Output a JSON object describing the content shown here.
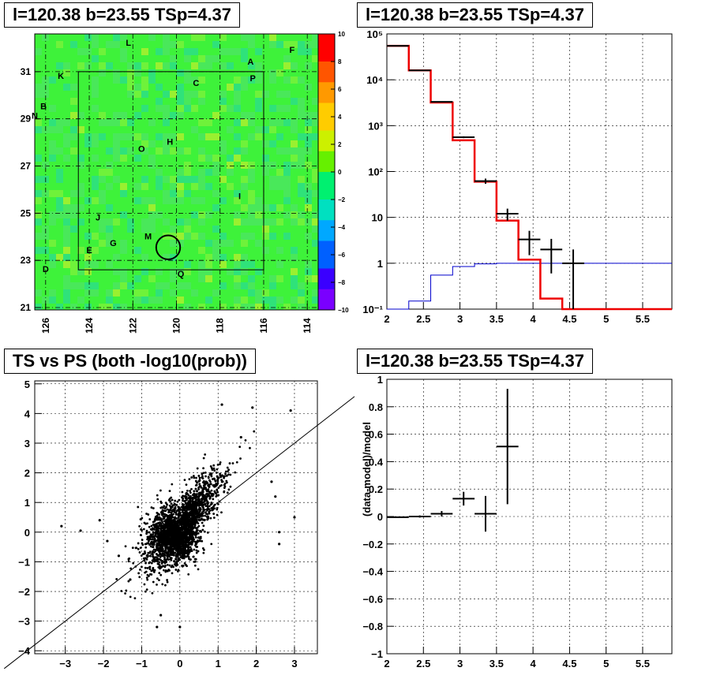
{
  "chart_data": [
    {
      "type": "heatmap",
      "title": "l=120.38 b=23.55 TSp=4.37",
      "x_ticks": [
        "126",
        "124",
        "122",
        "120",
        "118",
        "116",
        "114"
      ],
      "y_ticks": [
        "21",
        "23",
        "25",
        "27",
        "29",
        "31"
      ],
      "xlim": [
        126.5,
        113.5
      ],
      "ylim": [
        20.9,
        32.6
      ],
      "colorbar": {
        "ticks": [
          "10",
          "8",
          "6",
          "4",
          "2",
          "0",
          "−2",
          "−4",
          "−6",
          "−8",
          "−10"
        ],
        "range": [
          -10,
          10
        ]
      },
      "circle": {
        "l": 120.38,
        "b": 23.55,
        "r": 0.55
      },
      "labels": [
        {
          "t": "L",
          "l": 122.2,
          "b": 32.1
        },
        {
          "t": "F",
          "l": 114.7,
          "b": 31.8
        },
        {
          "t": "A",
          "l": 116.6,
          "b": 31.3
        },
        {
          "t": "K",
          "l": 125.3,
          "b": 30.7
        },
        {
          "t": "P",
          "l": 116.5,
          "b": 30.6
        },
        {
          "t": "C",
          "l": 119.1,
          "b": 30.4
        },
        {
          "t": "B",
          "l": 126.1,
          "b": 29.4
        },
        {
          "t": "N",
          "l": 126.5,
          "b": 29.0
        },
        {
          "t": "H",
          "l": 120.3,
          "b": 27.9
        },
        {
          "t": "O",
          "l": 121.6,
          "b": 27.6
        },
        {
          "t": "I",
          "l": 117.1,
          "b": 25.6
        },
        {
          "t": "J",
          "l": 123.6,
          "b": 24.7
        },
        {
          "t": "M",
          "l": 121.3,
          "b": 23.9
        },
        {
          "t": "G",
          "l": 122.9,
          "b": 23.6
        },
        {
          "t": "E",
          "l": 124.0,
          "b": 23.3
        },
        {
          "t": "D",
          "l": 126.0,
          "b": 22.5
        },
        {
          "t": "Q",
          "l": 119.8,
          "b": 22.3
        }
      ]
    },
    {
      "type": "line",
      "title": "l=120.38 b=23.55 TSp=4.37",
      "yscale": "log",
      "xlim": [
        2,
        5.9
      ],
      "ylim": [
        0.1,
        100000
      ],
      "x_ticks": [
        "2",
        "2.5",
        "3",
        "3.5",
        "4",
        "4.5",
        "5",
        "5.5"
      ],
      "y_ticks": [
        "10⁻¹",
        "1",
        "10",
        "10²",
        "10³",
        "10⁴",
        "10⁵"
      ],
      "bin_edges": [
        2.0,
        2.3,
        2.6,
        2.9,
        3.2,
        3.5,
        3.8,
        4.1,
        4.4,
        4.7,
        5.0,
        5.3,
        5.6,
        5.9
      ],
      "model": [
        55000,
        16000,
        3200,
        480,
        60,
        8.5,
        1.2,
        0.17,
        0.1,
        0.1,
        0.1,
        0.1,
        0.1
      ],
      "data": [
        55000,
        16000,
        3300,
        560,
        62,
        12,
        3.3,
        2.0,
        1.0
      ],
      "data_err": [
        200,
        130,
        60,
        25,
        8,
        3.5,
        1.8,
        1.4,
        1.0
      ],
      "blue": [
        0.1,
        0.15,
        0.55,
        0.85,
        0.97,
        1.0,
        1.0,
        1.0,
        1.0,
        1.0,
        1.0,
        1.0,
        1.0
      ]
    },
    {
      "type": "scatter",
      "title": "TS vs PS (both -log10(prob))",
      "xlim": [
        -3.8,
        3.6
      ],
      "ylim": [
        -4.1,
        5.1
      ],
      "x_ticks": [
        "−3",
        "−2",
        "−1",
        "0",
        "1",
        "2",
        "3"
      ],
      "y_ticks": [
        "−4",
        "−3",
        "−2",
        "−1",
        "0",
        "1",
        "2",
        "3",
        "4",
        "5"
      ],
      "diagonal": [
        [
          -4.6,
          -4.6
        ],
        [
          4.6,
          4.6
        ]
      ],
      "outliers": [
        [
          -3.1,
          0.2
        ],
        [
          -2.6,
          0.05
        ],
        [
          -2.1,
          0.4
        ],
        [
          -1.9,
          -0.3
        ],
        [
          -1.6,
          -0.8
        ],
        [
          -1.3,
          -1.6
        ],
        [
          2.4,
          1.7
        ],
        [
          2.9,
          4.1
        ],
        [
          3.0,
          0.5
        ],
        [
          2.6,
          0.0
        ],
        [
          2.5,
          1.2
        ],
        [
          1.1,
          4.3
        ],
        [
          1.9,
          4.2
        ],
        [
          1.6,
          3.2
        ],
        [
          2.6,
          -0.4
        ],
        [
          -0.5,
          -2.8
        ],
        [
          -0.6,
          -3.2
        ],
        [
          0.0,
          -3.2
        ]
      ]
    },
    {
      "type": "line",
      "title": "l=120.38 b=23.55 TSp=4.37",
      "ylabel": "(data-model)/model",
      "xlim": [
        2,
        5.9
      ],
      "ylim": [
        -1,
        1
      ],
      "x_ticks": [
        "2",
        "2.5",
        "3",
        "3.5",
        "4",
        "4.5",
        "5",
        "5.5"
      ],
      "y_ticks": [
        "−1",
        "−0.8",
        "−0.6",
        "−0.4",
        "−0.2",
        "0",
        "0.2",
        "0.4",
        "0.6",
        "0.8",
        "1"
      ],
      "points": [
        {
          "x": 2.15,
          "y": -0.005,
          "xerr": 0.15,
          "yerr": 0.005
        },
        {
          "x": 2.45,
          "y": 0.0,
          "xerr": 0.15,
          "yerr": 0.008
        },
        {
          "x": 2.75,
          "y": 0.02,
          "xerr": 0.15,
          "yerr": 0.02
        },
        {
          "x": 3.05,
          "y": 0.13,
          "xerr": 0.15,
          "yerr": 0.05
        },
        {
          "x": 3.35,
          "y": 0.02,
          "xerr": 0.15,
          "yerr": 0.13
        },
        {
          "x": 3.65,
          "y": 0.51,
          "xerr": 0.15,
          "yerr": 0.42
        }
      ]
    }
  ]
}
